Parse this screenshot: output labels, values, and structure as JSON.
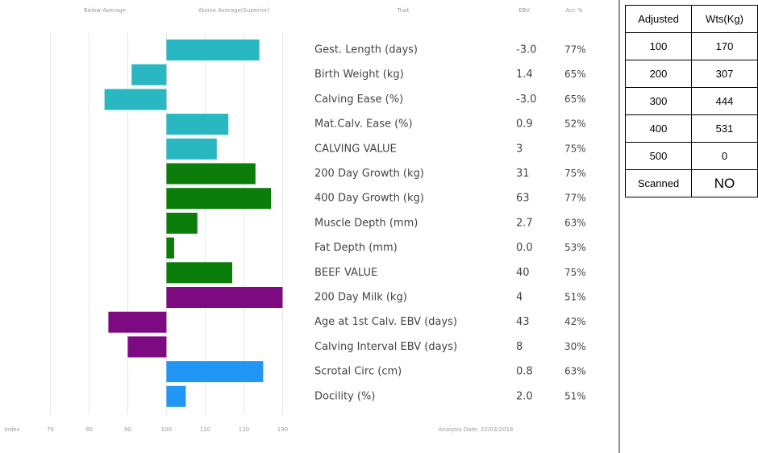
{
  "chart_data": {
    "type": "bar",
    "orientation": "horizontal",
    "header_left": "Below Average",
    "header_right": "Above Average(Superior)",
    "col_trait": "Trait",
    "col_ebv": "EBV",
    "col_acc": "Acc %",
    "xlabel": "Index",
    "footnote": "Analysis Date: 22/03/2018",
    "categories": [
      "Gest. Length (days)",
      "Birth Weight (kg)",
      "Calving Ease (%)",
      "Mat.Calv. Ease (%)",
      "CALVING VALUE",
      "200 Day Growth (kg)",
      "400 Day Growth (kg)",
      "Muscle Depth (mm)",
      "Fat Depth (mm)",
      "BEEF VALUE",
      "200 Day Milk (kg)",
      "Age at 1st Calv. EBV (days)",
      "Calving Interval EBV (days)",
      "Scrotal Circ (cm)",
      "Docility (%)"
    ],
    "values": [
      124,
      91,
      84,
      116,
      113,
      123,
      127,
      108,
      102,
      117,
      130,
      85,
      90,
      125,
      105
    ],
    "colors": [
      "#29b7c2",
      "#29b7c2",
      "#29b7c2",
      "#29b7c2",
      "#29b7c2",
      "#0b7d0b",
      "#0b7d0b",
      "#0b7d0b",
      "#0b7d0b",
      "#0b7d0b",
      "#7e0a82",
      "#7e0a82",
      "#7e0a82",
      "#2196f3",
      "#2196f3"
    ],
    "ebv": [
      "-3.0",
      "1.4",
      "-3.0",
      "0.9",
      "3",
      "31",
      "63",
      "2.7",
      "0.0",
      "40",
      "4",
      "43",
      "8",
      "0.8",
      "2.0"
    ],
    "accuracy": [
      "77%",
      "65%",
      "65%",
      "52%",
      "75%",
      "75%",
      "77%",
      "63%",
      "53%",
      "75%",
      "51%",
      "42%",
      "30%",
      "63%",
      "51%"
    ],
    "base": 100,
    "xlim": [
      57,
      137
    ],
    "xticks": [
      70,
      80,
      90,
      100,
      110,
      120,
      130
    ],
    "grid": true
  },
  "weights_table": {
    "header": [
      "Adjusted",
      "Wts(Kg)"
    ],
    "rows": [
      [
        "100",
        "170"
      ],
      [
        "200",
        "307"
      ],
      [
        "300",
        "444"
      ],
      [
        "400",
        "531"
      ],
      [
        "500",
        "0"
      ],
      [
        "Scanned",
        "NO"
      ]
    ]
  }
}
